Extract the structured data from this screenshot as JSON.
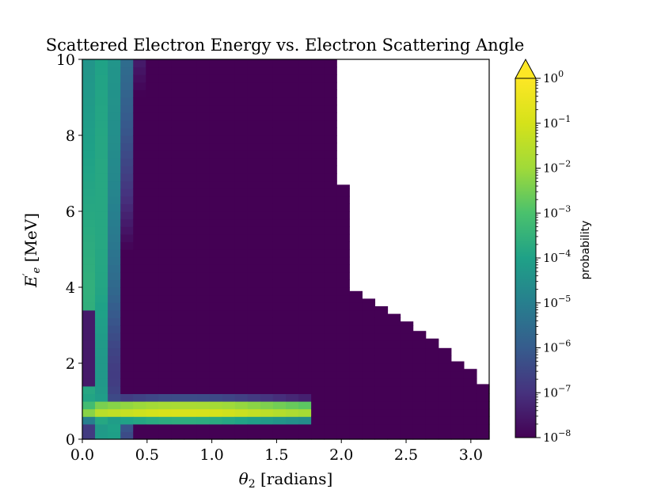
{
  "chart_data": {
    "type": "heatmap",
    "title": "Scattered Electron Energy vs. Electron Scattering Angle",
    "xlabel": "θ2 [radians]",
    "ylabel": "E′e [MeV]",
    "xlim": [
      0,
      3.1416
    ],
    "ylim": [
      0,
      10
    ],
    "x_ticks": [
      0.0,
      0.5,
      1.0,
      1.5,
      2.0,
      2.5,
      3.0
    ],
    "x_tick_labels": [
      "0.0",
      "0.5",
      "1.0",
      "1.5",
      "2.0",
      "2.5",
      "3.0"
    ],
    "y_ticks": [
      0,
      2,
      4,
      6,
      8,
      10
    ],
    "y_tick_labels": [
      "0",
      "2",
      "4",
      "6",
      "8",
      "10"
    ],
    "colorbar": {
      "label": "probability",
      "scale": "log",
      "min_exponent": -8,
      "max_exponent": 0,
      "tick_exponents": [
        0,
        -1,
        -2,
        -3,
        -4,
        -5,
        -6,
        -7,
        -8
      ],
      "extend": "max",
      "colormap": "viridis"
    },
    "grid": {
      "x_bins": 32,
      "y_bins": 50
    },
    "kinematic_limit": [
      {
        "x_max": 1.92,
        "e_max": 10.0
      },
      {
        "x_max": 2.01,
        "e_max": 7.95
      },
      {
        "x_max": 2.06,
        "e_max": 6.7
      },
      {
        "x_max": 2.11,
        "e_max": 4.85
      },
      {
        "x_max": 2.16,
        "e_max": 3.9
      },
      {
        "x_max": 2.21,
        "e_max": 3.7
      },
      {
        "x_max": 2.35,
        "e_max": 3.5
      },
      {
        "x_max": 2.46,
        "e_max": 3.3
      },
      {
        "x_max": 2.56,
        "e_max": 3.1
      },
      {
        "x_max": 2.66,
        "e_max": 2.85
      },
      {
        "x_max": 2.76,
        "e_max": 2.65
      },
      {
        "x_max": 2.88,
        "e_max": 2.4
      },
      {
        "x_max": 2.94,
        "e_max": 2.05
      },
      {
        "x_max": 3.0,
        "e_max": 1.85
      },
      {
        "x_max": 3.07,
        "e_max": 1.65
      },
      {
        "x_max": 3.1416,
        "e_max": 1.45
      }
    ],
    "features": {
      "low_energy_band": {
        "e_center": 0.75,
        "e_width": 0.22,
        "x_end": 1.75,
        "peak_log": -0.8
      },
      "forward_ridge": {
        "curve_A": 0.08,
        "curve_B": 0.014,
        "x_left_edge": 0.0,
        "peak_log": -3.5
      },
      "background_log": -8.3
    }
  }
}
